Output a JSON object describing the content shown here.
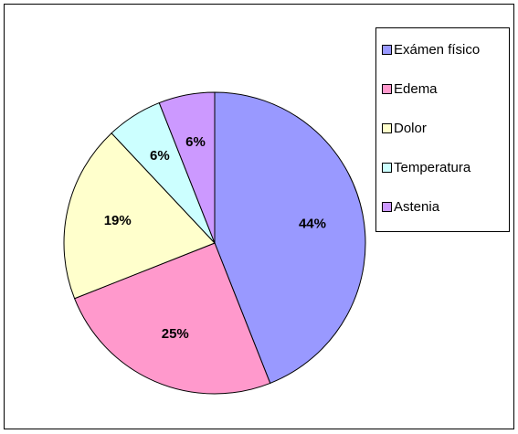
{
  "chart_data": {
    "type": "pie",
    "categories": [
      "Exámen físico",
      "Edema",
      "Dolor",
      "Temperatura",
      "Astenia"
    ],
    "values": [
      44,
      25,
      19,
      6,
      6
    ],
    "value_labels": [
      "44%",
      "25%",
      "19%",
      "6%",
      "6%"
    ],
    "colors": [
      "#9999ff",
      "#ff99cc",
      "#ffffcc",
      "#ccffff",
      "#cc99ff"
    ],
    "legend": "top-right"
  }
}
